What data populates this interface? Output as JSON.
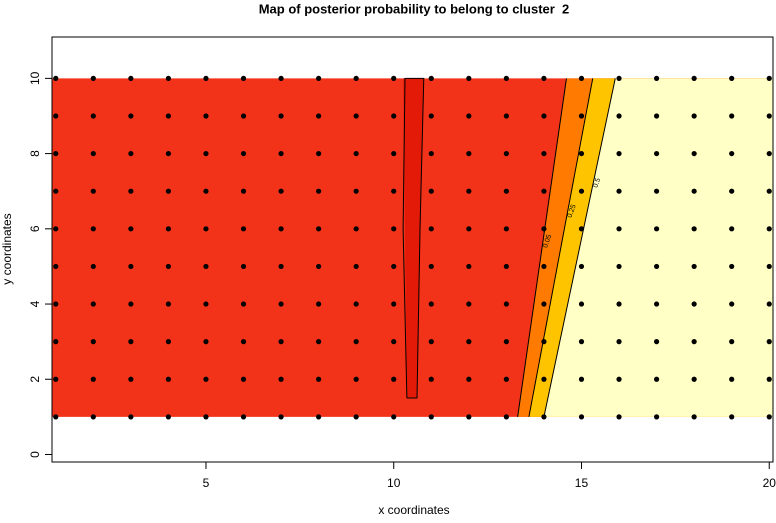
{
  "chart_data": {
    "type": "contour",
    "title": "Map of posterior probability to belong to cluster  2",
    "x_label": "x coordinates",
    "y_label": "y coordinates",
    "xlim": [
      0.9,
      20.1
    ],
    "ylim": [
      -0.2,
      11.1
    ],
    "xticks": [
      5,
      10,
      15,
      20
    ],
    "yticks": [
      0,
      2,
      4,
      6,
      8,
      10
    ],
    "grid_x": [
      1,
      2,
      3,
      4,
      5,
      6,
      7,
      8,
      9,
      10,
      11,
      12,
      13,
      14,
      15,
      16,
      17,
      18,
      19,
      20
    ],
    "grid_y": [
      1,
      2,
      3,
      4,
      5,
      6,
      7,
      8,
      9,
      10
    ],
    "point_color": "#000000",
    "bands": [
      {
        "color": "#f2331a",
        "x": [
          0.9,
          20.1,
          20.1,
          0.9
        ],
        "y": [
          1,
          1,
          10,
          10
        ]
      },
      {
        "color": "#e41a08",
        "x": [
          10.35,
          10.62,
          10.8,
          10.25
        ],
        "y": [
          1.5,
          1.5,
          10,
          10
        ]
      },
      {
        "color": "#ff7a00",
        "x": [
          13.3,
          14.6,
          20.1,
          20.1
        ],
        "y": [
          1,
          10,
          10,
          1
        ]
      },
      {
        "color": "#ffc400",
        "x": [
          13.6,
          15.3,
          20.1,
          20.1
        ],
        "y": [
          1,
          10,
          10,
          1
        ]
      },
      {
        "color": "#ffffc6",
        "x": [
          14.0,
          15.9,
          20.1,
          20.1
        ],
        "y": [
          1,
          10,
          10,
          1
        ]
      }
    ],
    "contours": [
      {
        "level": 0.05,
        "x": [
          13.3,
          14.6
        ],
        "y": [
          1,
          10
        ]
      },
      {
        "level": 0.25,
        "x": [
          13.6,
          15.3
        ],
        "y": [
          1,
          10
        ]
      },
      {
        "level": 0.5,
        "x": [
          14.0,
          15.9
        ],
        "y": [
          1,
          10
        ]
      },
      {
        "x": [
          10.35,
          10.25,
          10.3,
          10.8,
          10.7,
          10.62,
          10.35
        ],
        "y": [
          1.5,
          6,
          10,
          10,
          6,
          1.5,
          1.5
        ]
      }
    ]
  }
}
